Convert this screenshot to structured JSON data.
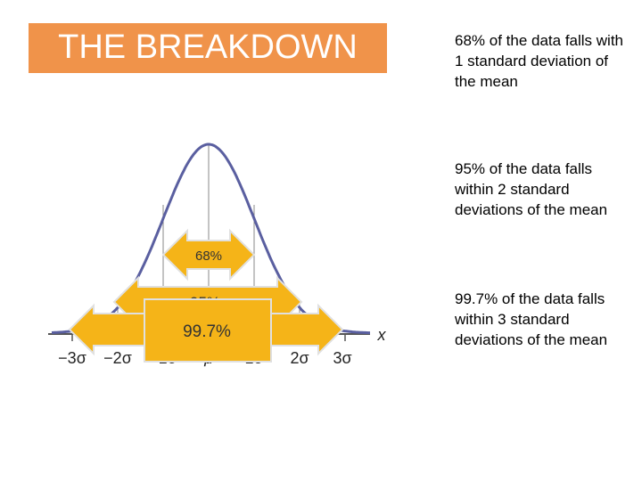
{
  "title": "THE BREAKDOWN",
  "bullets": [
    "68% of the data falls with 1 standard deviation of the mean",
    "95% of the data falls within 2 standard deviations of the mean",
    "99.7% of the data falls  within 3 standard deviations of the mean"
  ],
  "axis": {
    "variable": "x",
    "ticks": [
      "−3σ",
      "−2σ",
      "−1σ",
      "μ",
      "1σ",
      "2σ",
      "3σ"
    ]
  },
  "arrows": [
    "68%",
    "95%",
    "99.7%"
  ],
  "colors": {
    "title_bg": "#f0934a",
    "arrow": "#f5b418",
    "curve": "#5a5fa0"
  }
}
